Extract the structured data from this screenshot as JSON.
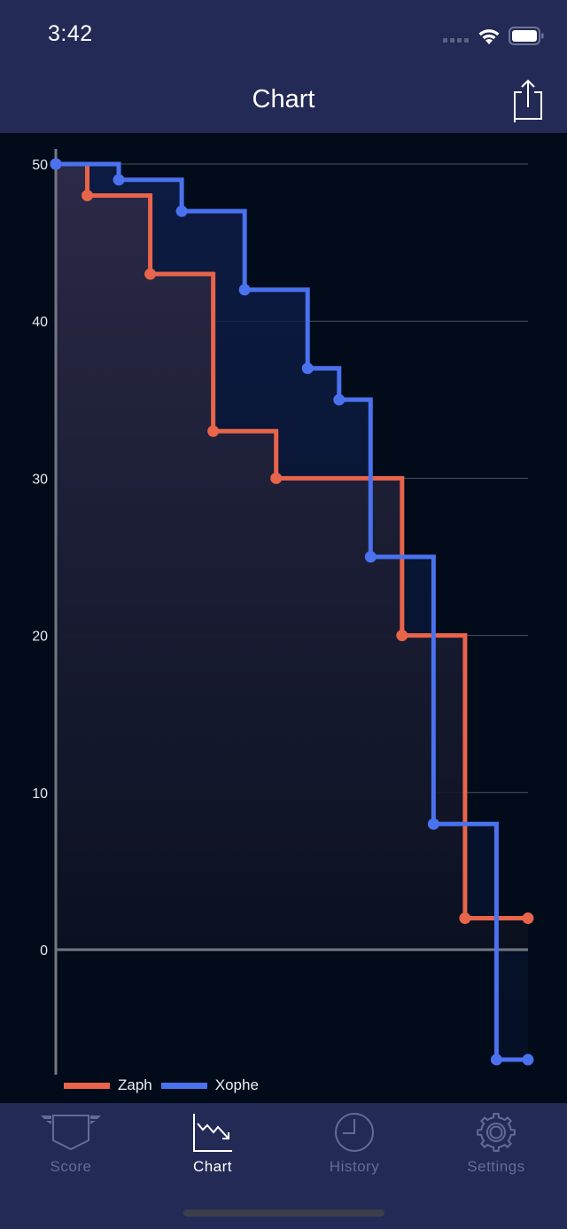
{
  "status_bar": {
    "time": "3:42",
    "icons": [
      "cellular-signal-icon",
      "wifi-icon",
      "battery-icon"
    ]
  },
  "nav": {
    "title": "Chart",
    "share_icon": "share-icon"
  },
  "colors": {
    "background": "#010b1a",
    "bar_background": "#232a55",
    "zaph": "#e8644a",
    "xophe": "#4a72ee",
    "inactive_tab": "#646b94",
    "active_tab": "#ffffff"
  },
  "chart_data": {
    "type": "line",
    "subtype": "step",
    "title": "",
    "xlabel": "",
    "ylabel": "",
    "x": [
      0,
      1,
      2,
      3,
      4,
      5,
      6,
      7,
      8,
      9,
      10,
      11,
      12,
      13,
      14,
      15
    ],
    "yticks": [
      0,
      10,
      20,
      30,
      40,
      50
    ],
    "ylim": [
      -8,
      50
    ],
    "xlim": [
      0,
      15
    ],
    "grid": true,
    "legend_position": "bottom-left",
    "series": [
      {
        "name": "Zaph",
        "color": "#e8644a",
        "points": [
          [
            0,
            50
          ],
          [
            1,
            48
          ],
          [
            3,
            43
          ],
          [
            5,
            33
          ],
          [
            7,
            30
          ],
          [
            11,
            20
          ],
          [
            13,
            2
          ],
          [
            15,
            2
          ]
        ]
      },
      {
        "name": "Xophe",
        "color": "#4a72ee",
        "points": [
          [
            0,
            50
          ],
          [
            2,
            49
          ],
          [
            4,
            47
          ],
          [
            6,
            42
          ],
          [
            8,
            37
          ],
          [
            9,
            35
          ],
          [
            10,
            25
          ],
          [
            12,
            8
          ],
          [
            14,
            -7
          ],
          [
            15,
            -7
          ]
        ]
      }
    ]
  },
  "legend": [
    {
      "label": "Zaph",
      "color": "#e8644a"
    },
    {
      "label": "Xophe",
      "color": "#4a72ee"
    }
  ],
  "tabs": [
    {
      "label": "Score",
      "icon": "shield-wings-icon",
      "active": false
    },
    {
      "label": "Chart",
      "icon": "chart-down-icon",
      "active": true
    },
    {
      "label": "History",
      "icon": "clock-icon",
      "active": false
    },
    {
      "label": "Settings",
      "icon": "gear-icon",
      "active": false
    }
  ]
}
